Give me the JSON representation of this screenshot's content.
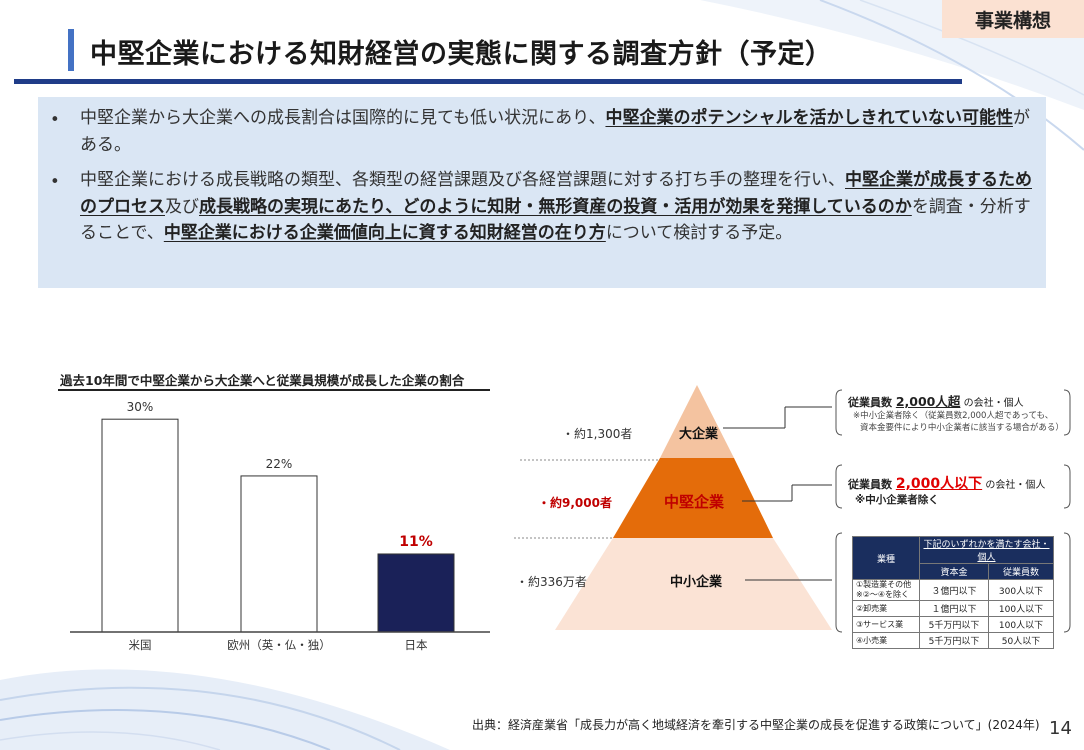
{
  "header": {
    "tag": "事業構想",
    "title": "中堅企業における知財経営の実態に関する調査方針（予定）"
  },
  "summary": {
    "bullet": "•",
    "item1": [
      {
        "t": "中堅企業から大企業への成長割合は国際的に見ても低い状況にあり、",
        "b": false
      },
      {
        "t": "中堅企業のポテンシャルを活かしきれていない可能性",
        "b": true
      },
      {
        "t": "がある。",
        "b": false
      }
    ],
    "item2": [
      {
        "t": "中堅企業における成長戦略の類型、各類型の経営課題及び各経営課題に対する打ち手の整理を行い、",
        "b": false
      },
      {
        "t": "中堅企業が成長するためのプロセス",
        "b": true
      },
      {
        "t": "及び",
        "b": false
      },
      {
        "t": "成長戦略の実現にあたり、どのように知財・無形資産の投資・活用が効果を発揮しているのか",
        "b": true
      },
      {
        "t": "を調査・分析することで、",
        "b": false
      },
      {
        "t": "中堅企業における企業価値向上に資する知財経営の在り方",
        "b": true
      },
      {
        "t": "について検討する予定。",
        "b": false
      }
    ]
  },
  "chart_data": {
    "type": "bar",
    "title": "過去10年間で中堅企業から大企業へと従業員規模が成長した企業の割合",
    "categories": [
      "米国",
      "欧州（英・仏・独）",
      "日本"
    ],
    "values": [
      30,
      22,
      11
    ],
    "value_labels": [
      "30%",
      "22%",
      "11%"
    ],
    "colors": [
      "#ffffff",
      "#ffffff",
      "#1a2158"
    ],
    "highlight_label_color": "#c00000",
    "ylim": [
      0,
      32
    ],
    "grid": false
  },
  "pyramid": {
    "tiers": [
      {
        "name": "大企業",
        "count": "・約1,300者",
        "color": "#f4c3a0"
      },
      {
        "name": "中堅企業",
        "count": "・約9,000者",
        "color": "#e46c0a"
      },
      {
        "name": "中小企業",
        "count": "・約336万者",
        "color": "#fbe3d5"
      }
    ]
  },
  "callouts": {
    "large": {
      "prefix": "従業員数 ",
      "emph": "2,000人超",
      "suffix": " の会社・個人",
      "note1": "※中小企業者除く（従業員数2,000人超であっても、",
      "note2": "資本金要件により中小企業者に該当する場合がある）"
    },
    "mid": {
      "prefix": "従業員数 ",
      "emph": "2,000人以下",
      "suffix": " の会社・個人",
      "note": "※中小企業者除く"
    },
    "small": {
      "caption": "下記のいずれかを満たす会社・個人",
      "headers": [
        "業種",
        "資本金",
        "従業員数"
      ],
      "rows": [
        [
          "①製造業その他\n※②〜④を除く",
          "３億円以下",
          "300人以下"
        ],
        [
          "②卸売業",
          "１億円以下",
          "100人以下"
        ],
        [
          "③サービス業",
          "5千万円以下",
          "100人以下"
        ],
        [
          "④小売業",
          "5千万円以下",
          "50人以下"
        ]
      ]
    }
  },
  "footer": {
    "source": "出典：経済産業省「成長力が高く地域経済を牽引する中堅企業の成長を促進する政策について」(2024年)",
    "page": "14"
  }
}
